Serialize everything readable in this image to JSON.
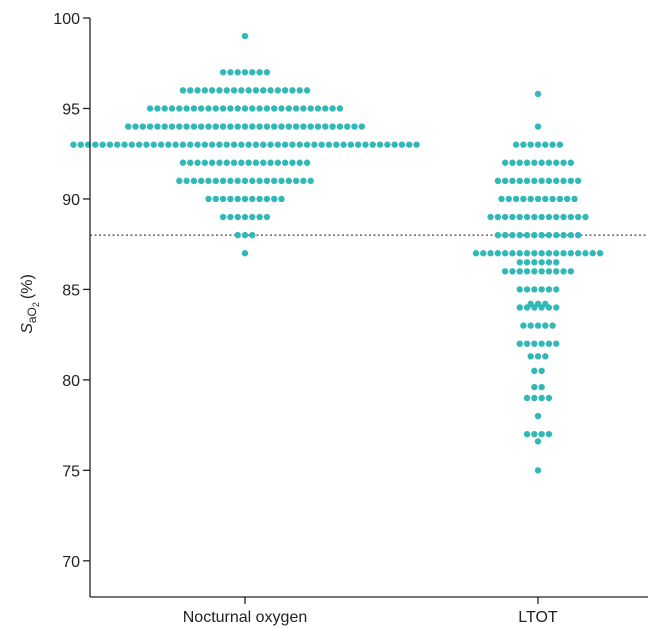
{
  "chart_data": {
    "type": "scatter",
    "subtype": "beeswarm",
    "title": "",
    "xlabel": "",
    "ylabel": {
      "variable": "S",
      "subscript": "aO",
      "sub_subscript": "2",
      "unit": "(%)"
    },
    "categories": [
      "Nocturnal oxygen",
      "LTOT"
    ],
    "ylim": [
      68,
      100
    ],
    "yticks": [
      "70",
      "75",
      "80",
      "85",
      "90",
      "95",
      "100"
    ],
    "reference_line": {
      "y": 88,
      "style": "dotted"
    },
    "grid": false,
    "legend": "none",
    "colors": {
      "points": "#33b8b8",
      "axis": "#222222",
      "reference": "#444444"
    },
    "series": [
      {
        "category": "Nocturnal oxygen",
        "distribution": [
          {
            "y": 99,
            "count": 1
          },
          {
            "y": 97,
            "count": 7
          },
          {
            "y": 96,
            "count": 18
          },
          {
            "y": 95,
            "count": 27
          },
          {
            "y": 94,
            "count": 33
          },
          {
            "y": 93,
            "count": 48
          },
          {
            "y": 92,
            "count": 18
          },
          {
            "y": 91,
            "count": 19
          },
          {
            "y": 90,
            "count": 11
          },
          {
            "y": 89,
            "count": 7
          },
          {
            "y": 88,
            "count": 3
          },
          {
            "y": 87,
            "count": 1
          }
        ]
      },
      {
        "category": "LTOT",
        "distribution": [
          {
            "y": 95.8,
            "count": 1
          },
          {
            "y": 94,
            "count": 1
          },
          {
            "y": 93,
            "count": 7
          },
          {
            "y": 92,
            "count": 10
          },
          {
            "y": 91,
            "count": 12
          },
          {
            "y": 90,
            "count": 11
          },
          {
            "y": 89,
            "count": 14
          },
          {
            "y": 88,
            "count": 12
          },
          {
            "y": 87,
            "count": 18
          },
          {
            "y": 86.5,
            "count": 6
          },
          {
            "y": 86,
            "count": 10
          },
          {
            "y": 85,
            "count": 6
          },
          {
            "y": 84.2,
            "count": 3
          },
          {
            "y": 84,
            "count": 6
          },
          {
            "y": 83,
            "count": 5
          },
          {
            "y": 82,
            "count": 6
          },
          {
            "y": 81.3,
            "count": 3
          },
          {
            "y": 80.5,
            "count": 2
          },
          {
            "y": 79.6,
            "count": 2
          },
          {
            "y": 79,
            "count": 4
          },
          {
            "y": 78,
            "count": 1
          },
          {
            "y": 77,
            "count": 4
          },
          {
            "y": 76.6,
            "count": 1
          },
          {
            "y": 75,
            "count": 1
          }
        ]
      }
    ]
  }
}
